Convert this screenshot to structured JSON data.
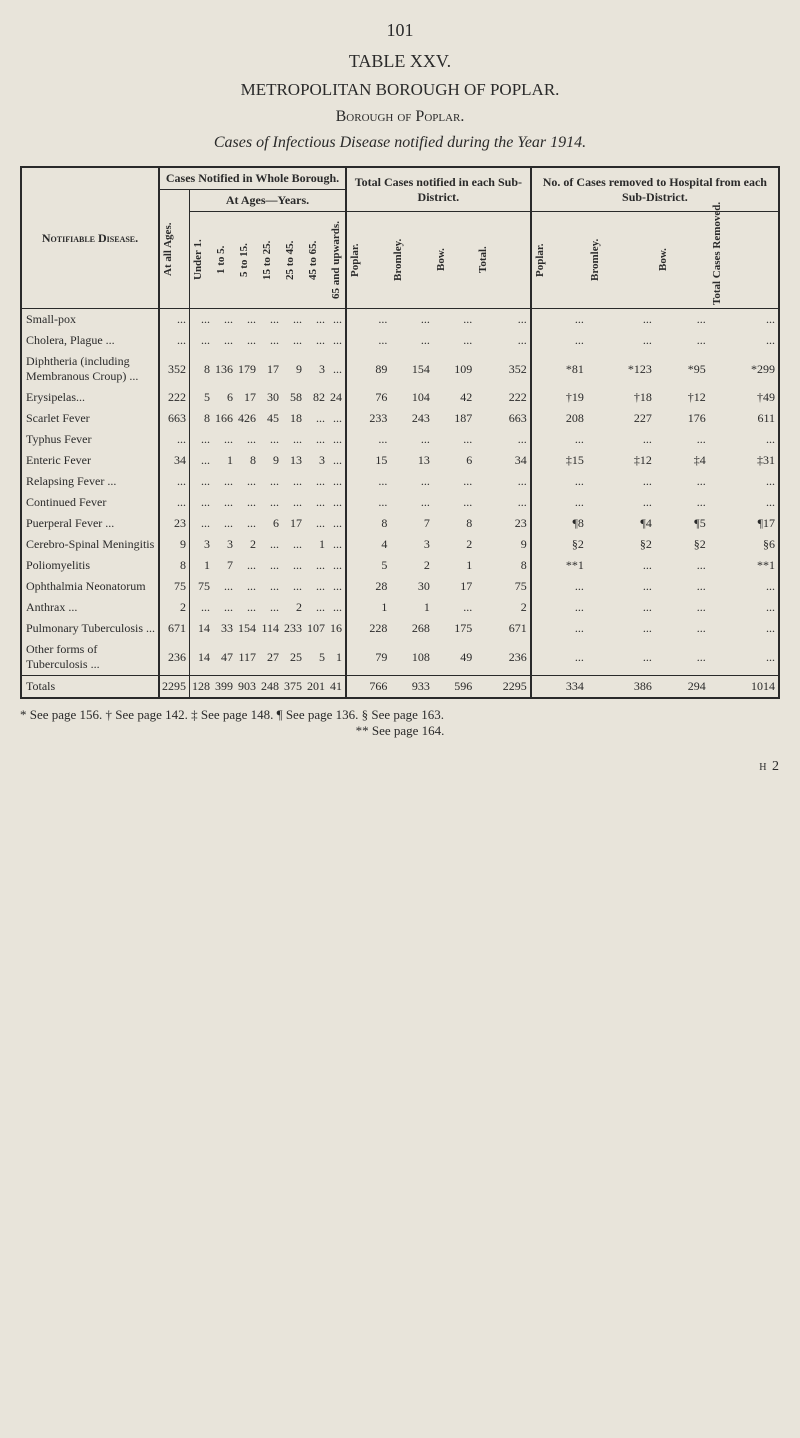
{
  "page_number": "101",
  "table_title": "TABLE XXV.",
  "borough_title": "METROPOLITAN BOROUGH OF POPLAR.",
  "borough_subtitle": "Borough of Poplar.",
  "caption": "Cases of Infectious Disease notified during the Year 1914.",
  "headers": {
    "disease": "Notifiable Disease.",
    "cases_whole": "Cases Notified in Whole Borough.",
    "at_ages": "At Ages—Years.",
    "total_cases": "Total Cases notified in each Sub-District.",
    "removed": "No. of Cases removed to Hospital from each Sub-District.",
    "at_all_ages": "At all Ages.",
    "age_cols": [
      "Under 1.",
      "1 to 5.",
      "5 to 15.",
      "15 to 25.",
      "25 to 45.",
      "45 to 65.",
      "65 and upwards."
    ],
    "sub_cols": [
      "Poplar.",
      "Bromley.",
      "Bow.",
      "Total."
    ],
    "removed_cols": [
      "Poplar.",
      "Bromley.",
      "Bow.",
      "Total Cases Removed."
    ]
  },
  "rows": [
    {
      "disease": "Small-pox",
      "all": "...",
      "ages": [
        "...",
        "...",
        "...",
        "...",
        "...",
        "...",
        "..."
      ],
      "sub": [
        "...",
        "...",
        "...",
        "..."
      ],
      "rem": [
        "...",
        "...",
        "...",
        "..."
      ]
    },
    {
      "disease": "Cholera, Plague ...",
      "all": "...",
      "ages": [
        "...",
        "...",
        "...",
        "...",
        "...",
        "...",
        "..."
      ],
      "sub": [
        "...",
        "...",
        "...",
        "..."
      ],
      "rem": [
        "...",
        "...",
        "...",
        "..."
      ]
    },
    {
      "disease": "Diphtheria (including Membranous Croup) ...",
      "all": "352",
      "ages": [
        "8",
        "136",
        "179",
        "17",
        "9",
        "3",
        "..."
      ],
      "sub": [
        "89",
        "154",
        "109",
        "352"
      ],
      "rem": [
        "*81",
        "*123",
        "*95",
        "*299"
      ]
    },
    {
      "disease": "Erysipelas...",
      "all": "222",
      "ages": [
        "5",
        "6",
        "17",
        "30",
        "58",
        "82",
        "24"
      ],
      "sub": [
        "76",
        "104",
        "42",
        "222"
      ],
      "rem": [
        "†19",
        "†18",
        "†12",
        "†49"
      ]
    },
    {
      "disease": "Scarlet Fever",
      "all": "663",
      "ages": [
        "8",
        "166",
        "426",
        "45",
        "18",
        "...",
        "..."
      ],
      "sub": [
        "233",
        "243",
        "187",
        "663"
      ],
      "rem": [
        "208",
        "227",
        "176",
        "611"
      ]
    },
    {
      "disease": "Typhus Fever",
      "all": "...",
      "ages": [
        "...",
        "...",
        "...",
        "...",
        "...",
        "...",
        "..."
      ],
      "sub": [
        "...",
        "...",
        "...",
        "..."
      ],
      "rem": [
        "...",
        "...",
        "...",
        "..."
      ]
    },
    {
      "disease": "Enteric Fever",
      "all": "34",
      "ages": [
        "...",
        "1",
        "8",
        "9",
        "13",
        "3",
        "..."
      ],
      "sub": [
        "15",
        "13",
        "6",
        "34"
      ],
      "rem": [
        "‡15",
        "‡12",
        "‡4",
        "‡31"
      ]
    },
    {
      "disease": "Relapsing Fever ...",
      "all": "...",
      "ages": [
        "...",
        "...",
        "...",
        "...",
        "...",
        "...",
        "..."
      ],
      "sub": [
        "...",
        "...",
        "...",
        "..."
      ],
      "rem": [
        "...",
        "...",
        "...",
        "..."
      ]
    },
    {
      "disease": "Continued Fever",
      "all": "...",
      "ages": [
        "...",
        "...",
        "...",
        "...",
        "...",
        "...",
        "..."
      ],
      "sub": [
        "...",
        "...",
        "...",
        "..."
      ],
      "rem": [
        "...",
        "...",
        "...",
        "..."
      ]
    },
    {
      "disease": "Puerperal Fever ...",
      "all": "23",
      "ages": [
        "...",
        "...",
        "...",
        "6",
        "17",
        "...",
        "..."
      ],
      "sub": [
        "8",
        "7",
        "8",
        "23"
      ],
      "rem": [
        "¶8",
        "¶4",
        "¶5",
        "¶17"
      ]
    },
    {
      "disease": "Cerebro-Spinal Meningitis",
      "all": "9",
      "ages": [
        "3",
        "3",
        "2",
        "...",
        "...",
        "1",
        "..."
      ],
      "sub": [
        "4",
        "3",
        "2",
        "9"
      ],
      "rem": [
        "§2",
        "§2",
        "§2",
        "§6"
      ]
    },
    {
      "disease": "Poliomyelitis",
      "all": "8",
      "ages": [
        "1",
        "7",
        "...",
        "...",
        "...",
        "...",
        "..."
      ],
      "sub": [
        "5",
        "2",
        "1",
        "8"
      ],
      "rem": [
        "**1",
        "...",
        "...",
        "**1"
      ]
    },
    {
      "disease": "Ophthalmia Neonatorum",
      "all": "75",
      "ages": [
        "75",
        "...",
        "...",
        "...",
        "...",
        "...",
        "..."
      ],
      "sub": [
        "28",
        "30",
        "17",
        "75"
      ],
      "rem": [
        "...",
        "...",
        "...",
        "..."
      ]
    },
    {
      "disease": "Anthrax ...",
      "all": "2",
      "ages": [
        "...",
        "...",
        "...",
        "...",
        "2",
        "...",
        "..."
      ],
      "sub": [
        "1",
        "1",
        "...",
        "2"
      ],
      "rem": [
        "...",
        "...",
        "...",
        "..."
      ]
    },
    {
      "disease": "Pulmonary Tuberculosis ...",
      "all": "671",
      "ages": [
        "14",
        "33",
        "154",
        "114",
        "233",
        "107",
        "16"
      ],
      "sub": [
        "228",
        "268",
        "175",
        "671"
      ],
      "rem": [
        "...",
        "...",
        "...",
        "..."
      ]
    },
    {
      "disease": "Other forms of Tuberculosis ...",
      "all": "236",
      "ages": [
        "14",
        "47",
        "117",
        "27",
        "25",
        "5",
        "1"
      ],
      "sub": [
        "79",
        "108",
        "49",
        "236"
      ],
      "rem": [
        "...",
        "...",
        "...",
        "..."
      ]
    }
  ],
  "totals": {
    "label": "Totals",
    "all": "2295",
    "ages": [
      "128",
      "399",
      "903",
      "248",
      "375",
      "201",
      "41"
    ],
    "sub": [
      "766",
      "933",
      "596",
      "2295"
    ],
    "rem": [
      "334",
      "386",
      "294",
      "1014"
    ]
  },
  "footnotes": {
    "line1": "* See page 156.   † See page 142.   ‡ See page 148.   ¶ See page 136.   § See page 163.",
    "line2": "** See page 164."
  },
  "sheet_mark": "h 2"
}
